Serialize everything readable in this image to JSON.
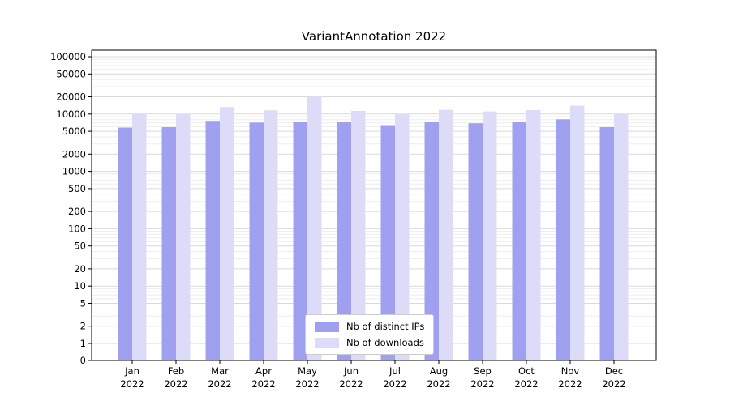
{
  "chart_data": {
    "type": "bar",
    "title": "VariantAnnotation 2022",
    "xlabel": "",
    "ylabel": "",
    "y_scale": "log",
    "ylim": [
      0,
      100000
    ],
    "grid": true,
    "legend_position": "bottom-center-inside",
    "months": [
      "Jan",
      "Feb",
      "Mar",
      "Apr",
      "May",
      "Jun",
      "Jul",
      "Aug",
      "Sep",
      "Oct",
      "Nov",
      "Dec"
    ],
    "year_label": "2022",
    "y_ticks": [
      {
        "label": "100000",
        "value": 100000
      },
      {
        "label": "50000",
        "value": 50000
      },
      {
        "label": "20000",
        "value": 20000
      },
      {
        "label": "10000",
        "value": 10000
      },
      {
        "label": "5000",
        "value": 5000
      },
      {
        "label": "2000",
        "value": 2000
      },
      {
        "label": "1000",
        "value": 1000
      },
      {
        "label": "500",
        "value": 500
      },
      {
        "label": "200",
        "value": 200
      },
      {
        "label": "100",
        "value": 100
      },
      {
        "label": "50",
        "value": 50
      },
      {
        "label": "20",
        "value": 20
      },
      {
        "label": "10",
        "value": 10
      },
      {
        "label": "5",
        "value": 5
      },
      {
        "label": "2",
        "value": 2
      },
      {
        "label": "1",
        "value": 1
      },
      {
        "label": "0",
        "value": 0
      }
    ],
    "series": [
      {
        "name": "Nb of distinct IPs",
        "color": "#a0a0f0",
        "values": [
          5800,
          5900,
          7600,
          7100,
          7300,
          7200,
          6400,
          7400,
          6900,
          7400,
          8100,
          5900
        ]
      },
      {
        "name": "Nb of downloads",
        "color": "#dcdcf8",
        "values": [
          10000,
          10100,
          13200,
          11600,
          20000,
          11300,
          10100,
          11800,
          11100,
          11700,
          14000,
          10000
        ]
      }
    ]
  }
}
